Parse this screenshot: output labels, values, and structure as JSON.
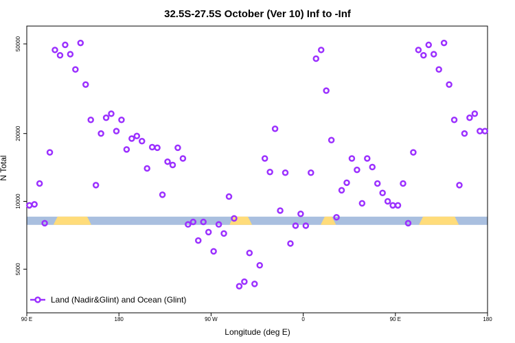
{
  "chart_data": {
    "type": "scatter",
    "title": "32.5S-27.5S October (Ver 10)   Inf to -Inf",
    "xlabel": "Longitude (deg E)",
    "ylabel": "N Total",
    "y_scale": "log",
    "xlim": [
      90,
      540
    ],
    "ylim": [
      3200,
      60000
    ],
    "x_ticks": [
      {
        "value": 90,
        "label": "90 E"
      },
      {
        "value": 180,
        "label": "180"
      },
      {
        "value": 270,
        "label": "90 W"
      },
      {
        "value": 360,
        "label": "0"
      },
      {
        "value": 450,
        "label": "90 E"
      },
      {
        "value": 540,
        "label": "180"
      }
    ],
    "y_ticks": [
      {
        "value": 5000,
        "label": "5000"
      },
      {
        "value": 10000,
        "label": "10000"
      },
      {
        "value": 20000,
        "label": "20000"
      },
      {
        "value": 50000,
        "label": "50000"
      }
    ],
    "legend": {
      "label": "Land (Nadir&Glint) and Ocean (Glint)",
      "position": "bottom-left"
    },
    "colors": {
      "series": "#9b30ff",
      "ocean_band": "#a9bfdf",
      "land_band": "#ffdc7a"
    },
    "surface_band": {
      "y": 8200,
      "land_segments": [
        [
          116,
          153
        ],
        [
          288,
          310
        ],
        [
          377,
          392
        ],
        [
          473,
          512
        ]
      ]
    },
    "series": [
      {
        "name": "Land (Nadir&Glint) and Ocean (Glint)",
        "x": [
          92.5,
          97.5,
          102.5,
          107.5,
          112.5,
          117.5,
          122.5,
          127.5,
          132.5,
          137.5,
          142.5,
          147.5,
          152.5,
          157.5,
          162.5,
          167.5,
          172.5,
          177.5,
          182.5,
          187.5,
          192.5,
          197.5,
          202.5,
          207.5,
          212.5,
          217.5,
          222.5,
          227.5,
          232.5,
          237.5,
          242.5,
          247.5,
          252.5,
          257.5,
          262.5,
          267.5,
          272.5,
          277.5,
          282.5,
          287.5,
          292.5,
          297.5,
          302.5,
          307.5,
          312.5,
          317.5,
          322.5,
          327.5,
          332.5,
          337.5,
          342.5,
          347.5,
          352.5,
          357.5,
          362.5,
          367.5,
          372.5,
          377.5,
          382.5,
          387.5,
          392.5,
          397.5,
          402.5,
          407.5,
          412.5,
          417.5,
          422.5,
          427.5,
          432.5,
          437.5,
          442.5,
          447.5,
          452.5,
          457.5,
          462.5,
          467.5,
          472.5,
          477.5,
          482.5,
          487.5,
          492.5,
          497.5,
          502.5,
          507.5,
          512.5,
          517.5,
          522.5,
          527.5,
          532.5,
          537.5
        ],
        "y": [
          9600,
          9700,
          12000,
          8000,
          16500,
          47000,
          44500,
          49500,
          45000,
          38500,
          50500,
          33000,
          23000,
          11800,
          20000,
          23500,
          24500,
          20500,
          23000,
          17000,
          19000,
          19500,
          18500,
          14000,
          17400,
          17300,
          10700,
          15000,
          14500,
          17300,
          15500,
          7900,
          8100,
          6700,
          8100,
          7300,
          6000,
          7900,
          7200,
          10500,
          8400,
          4200,
          4400,
          5900,
          4300,
          5200,
          15500,
          13500,
          21000,
          9100,
          13400,
          6500,
          7800,
          8800,
          7800,
          13400,
          43000,
          47000,
          31000,
          18700,
          8500,
          11200,
          12100,
          15500,
          13800,
          9800,
          15500,
          14200,
          12000,
          10900,
          10000,
          9600,
          9600,
          12000,
          8000,
          16500,
          47000,
          44500,
          49500,
          45000,
          38500,
          50500,
          33000,
          23000,
          11800,
          20000,
          23500,
          24500,
          20500,
          20500
        ]
      }
    ]
  }
}
